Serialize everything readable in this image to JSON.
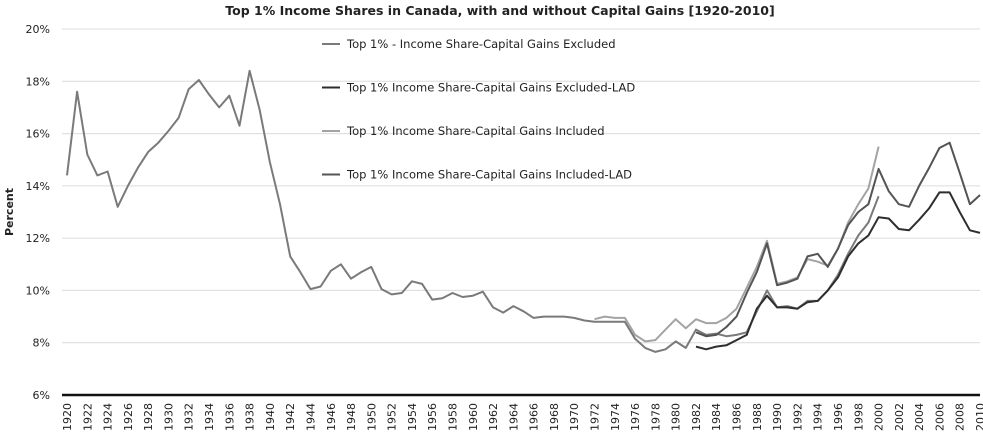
{
  "chart_data": {
    "type": "line",
    "title": "Top 1% Income Shares in Canada, with and without Capital Gains [1920-2010]",
    "xlabel": "",
    "ylabel": "Percent",
    "ylim": [
      6,
      20
    ],
    "yticks": [
      "6%",
      "8%",
      "10%",
      "12%",
      "14%",
      "16%",
      "18%",
      "20%"
    ],
    "xlim": [
      1920,
      2010
    ],
    "xtick_step": 2,
    "grid": "horizontal",
    "legend_placement": "top-center",
    "series": [
      {
        "name": "Top 1% - Income Share-Capital Gains  Excluded",
        "color": "#7a7a7a",
        "start": 1920,
        "values": [
          14.4,
          17.6,
          15.2,
          14.4,
          14.55,
          13.2,
          14.0,
          14.7,
          15.3,
          15.65,
          16.1,
          16.6,
          17.7,
          18.05,
          17.5,
          17.0,
          17.45,
          16.3,
          18.4,
          16.9,
          14.9,
          13.3,
          11.3,
          10.7,
          10.05,
          10.15,
          10.75,
          11.0,
          10.45,
          10.7,
          10.9,
          10.05,
          9.85,
          9.9,
          10.35,
          10.25,
          9.65,
          9.7,
          9.9,
          9.75,
          9.8,
          9.95,
          9.35,
          9.15,
          9.4,
          9.2,
          8.95,
          9.0,
          9.0,
          9.0,
          8.95,
          8.85,
          8.8,
          8.8,
          8.8,
          8.8,
          8.15,
          7.8,
          7.65,
          7.75,
          8.05,
          7.8,
          8.5,
          8.3,
          8.35,
          8.25,
          8.3,
          8.4,
          9.2,
          10.0,
          9.35,
          9.4,
          9.3,
          9.6,
          9.6,
          10.0,
          10.6,
          11.4,
          12.1,
          12.6,
          13.6
        ]
      },
      {
        "name": "Top 1%  Income Share-Capital Gains  Excluded-LAD",
        "color": "#2e2e2e",
        "start": 1982,
        "values": [
          7.85,
          7.75,
          7.85,
          7.9,
          8.1,
          8.3,
          9.3,
          9.8,
          9.35,
          9.35,
          9.3,
          9.55,
          9.6,
          10.0,
          10.5,
          11.3,
          11.8,
          12.1,
          12.8,
          12.75,
          12.35,
          12.3,
          12.7,
          13.15,
          13.75,
          13.75,
          13.0,
          12.3,
          12.2
        ]
      },
      {
        "name": "Top 1%  Income Share-Capital Gains  Included",
        "color": "#a3a3a3",
        "start": 1972,
        "values": [
          8.9,
          9.0,
          8.95,
          8.95,
          8.3,
          8.05,
          8.1,
          8.5,
          8.9,
          8.55,
          8.9,
          8.75,
          8.75,
          8.95,
          9.3,
          10.1,
          10.9,
          11.9,
          10.25,
          10.35,
          10.5,
          11.2,
          11.1,
          10.95,
          11.6,
          12.6,
          13.3,
          13.9,
          15.5
        ]
      },
      {
        "name": "Top 1%  Income Share-Capital Gains  Included-LAD",
        "color": "#545454",
        "start": 1982,
        "values": [
          8.4,
          8.25,
          8.3,
          8.6,
          9.0,
          9.9,
          10.7,
          11.8,
          10.2,
          10.3,
          10.45,
          11.3,
          11.4,
          10.9,
          11.6,
          12.5,
          13.0,
          13.3,
          14.65,
          13.8,
          13.3,
          13.2,
          14.0,
          14.7,
          15.45,
          15.65,
          14.5,
          13.3,
          13.65
        ]
      }
    ]
  }
}
